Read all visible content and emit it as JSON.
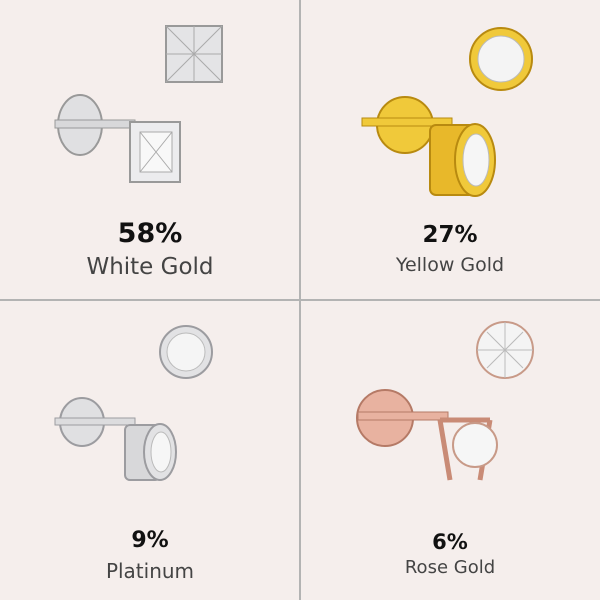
{
  "items": [
    {
      "percent": "58%",
      "label": "White Gold",
      "metal": "#d8d8da",
      "metal_dark": "#9a9a9e",
      "stone_cut": "princess",
      "setting": "prong"
    },
    {
      "percent": "27%",
      "label": "Yellow Gold",
      "metal": "#f0c93a",
      "metal_dark": "#b88a10",
      "stone_cut": "round",
      "setting": "bezel"
    },
    {
      "percent": "9%",
      "label": "Platinum",
      "metal": "#e2e2e4",
      "metal_dark": "#9c9ca0",
      "stone_cut": "round",
      "setting": "bezel"
    },
    {
      "percent": "6%",
      "label": "Rose Gold",
      "metal": "#e8b2a0",
      "metal_dark": "#b57a66",
      "stone_cut": "round",
      "setting": "prong"
    }
  ],
  "colors": {
    "background": "#f5eeec",
    "divider": "#b3b3b3"
  }
}
